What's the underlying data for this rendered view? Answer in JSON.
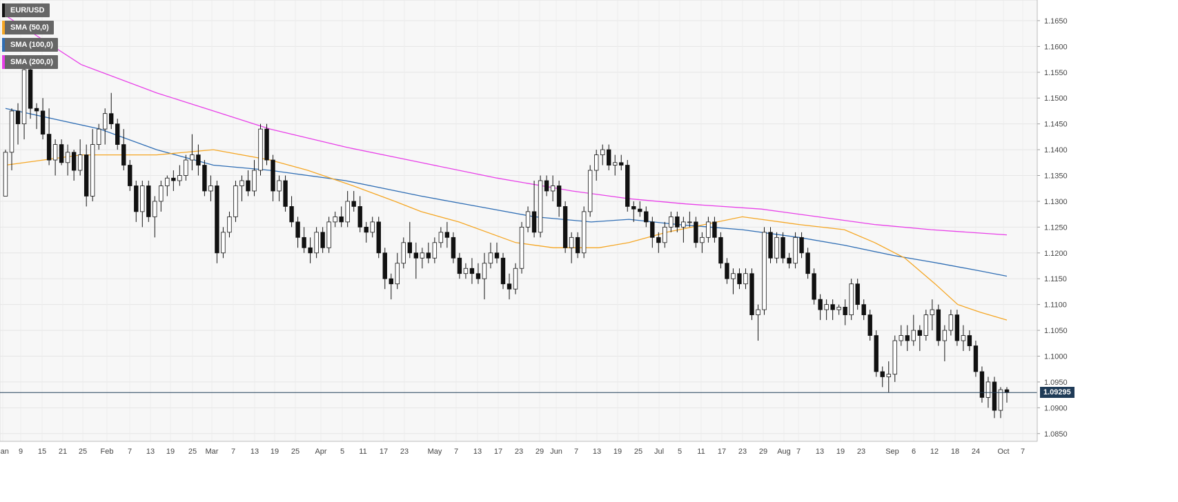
{
  "chart_data": {
    "type": "candlestick",
    "symbol": "EUR/USD",
    "y_ticks": [
      "1.1650",
      "1.1600",
      "1.1550",
      "1.1500",
      "1.1450",
      "1.1400",
      "1.1350",
      "1.1300",
      "1.1250",
      "1.1200",
      "1.1150",
      "1.1100",
      "1.1050",
      "1.1000",
      "1.0950",
      "1.0900",
      "1.0850"
    ],
    "x_ticks": [
      "Jan",
      "9",
      "15",
      "21",
      "25",
      "Feb",
      "7",
      "13",
      "19",
      "25",
      "Mar",
      "7",
      "13",
      "19",
      "25",
      "Apr",
      "5",
      "11",
      "17",
      "23",
      "May",
      "7",
      "13",
      "17",
      "23",
      "29",
      "Jun",
      "7",
      "13",
      "19",
      "25",
      "Jul",
      "5",
      "11",
      "17",
      "23",
      "29",
      "Aug",
      "7",
      "13",
      "19",
      "23",
      "Sep",
      "6",
      "12",
      "18",
      "24",
      "Oct",
      "7"
    ],
    "ylim": [
      1.0835,
      1.169
    ],
    "current_price": 1.09295,
    "current_price_label": "1.09295",
    "legend": [
      {
        "label": "EUR/USD",
        "color": "#111111"
      },
      {
        "label": "SMA (50,0)",
        "color": "#f5a623"
      },
      {
        "label": "SMA (100,0)",
        "color": "#2e6db4"
      },
      {
        "label": "SMA (200,0)",
        "color": "#e83ee8"
      }
    ],
    "sma_50": [
      [
        0,
        1.137
      ],
      [
        20,
        1.139
      ],
      [
        40,
        1.139
      ],
      [
        55,
        1.14
      ],
      [
        70,
        1.138
      ],
      [
        80,
        1.136
      ],
      [
        92,
        1.133
      ],
      [
        103,
        1.13
      ],
      [
        110,
        1.128
      ],
      [
        120,
        1.126
      ],
      [
        135,
        1.122
      ],
      [
        145,
        1.121
      ],
      [
        157,
        1.121
      ],
      [
        165,
        1.122
      ],
      [
        175,
        1.124
      ],
      [
        195,
        1.127
      ],
      [
        210,
        1.1255
      ],
      [
        222,
        1.1245
      ],
      [
        230,
        1.122
      ],
      [
        238,
        1.119
      ],
      [
        246,
        1.114
      ],
      [
        252,
        1.11
      ],
      [
        258,
        1.1085
      ],
      [
        265,
        1.107
      ]
    ],
    "sma_100": [
      [
        0,
        1.148
      ],
      [
        25,
        1.144
      ],
      [
        40,
        1.14
      ],
      [
        55,
        1.137
      ],
      [
        70,
        1.136
      ],
      [
        90,
        1.134
      ],
      [
        110,
        1.131
      ],
      [
        125,
        1.129
      ],
      [
        140,
        1.127
      ],
      [
        155,
        1.126
      ],
      [
        165,
        1.1265
      ],
      [
        178,
        1.1255
      ],
      [
        195,
        1.1245
      ],
      [
        210,
        1.123
      ],
      [
        222,
        1.1215
      ],
      [
        235,
        1.1195
      ],
      [
        247,
        1.118
      ],
      [
        258,
        1.1165
      ],
      [
        265,
        1.1155
      ]
    ],
    "sma_200": [
      [
        0,
        1.166
      ],
      [
        20,
        1.1565
      ],
      [
        40,
        1.151
      ],
      [
        55,
        1.1475
      ],
      [
        70,
        1.144
      ],
      [
        90,
        1.1405
      ],
      [
        110,
        1.1375
      ],
      [
        130,
        1.1345
      ],
      [
        150,
        1.132
      ],
      [
        165,
        1.1305
      ],
      [
        180,
        1.1295
      ],
      [
        200,
        1.1285
      ],
      [
        215,
        1.127
      ],
      [
        230,
        1.1255
      ],
      [
        245,
        1.1245
      ],
      [
        265,
        1.1235
      ]
    ],
    "candles": [
      [
        1.131,
        1.14,
        1.131,
        1.1395
      ],
      [
        1.1395,
        1.148,
        1.136,
        1.1475
      ],
      [
        1.1475,
        1.149,
        1.141,
        1.145
      ],
      [
        1.145,
        1.157,
        1.142,
        1.1555
      ],
      [
        1.1555,
        1.156,
        1.146,
        1.148
      ],
      [
        1.148,
        1.149,
        1.144,
        1.1475
      ],
      [
        1.1475,
        1.15,
        1.142,
        1.143
      ],
      [
        1.143,
        1.148,
        1.137,
        1.138
      ],
      [
        1.138,
        1.142,
        1.135,
        1.141
      ],
      [
        1.141,
        1.142,
        1.137,
        1.1375
      ],
      [
        1.1375,
        1.141,
        1.135,
        1.1395
      ],
      [
        1.1395,
        1.14,
        1.134,
        1.136
      ],
      [
        1.136,
        1.142,
        1.135,
        1.139
      ],
      [
        1.139,
        1.141,
        1.129,
        1.131
      ],
      [
        1.131,
        1.144,
        1.13,
        1.141
      ],
      [
        1.141,
        1.145,
        1.14,
        1.144
      ],
      [
        1.144,
        1.148,
        1.141,
        1.147
      ],
      [
        1.147,
        1.151,
        1.144,
        1.145
      ],
      [
        1.145,
        1.146,
        1.14,
        1.141
      ],
      [
        1.141,
        1.144,
        1.136,
        1.137
      ],
      [
        1.137,
        1.138,
        1.132,
        1.133
      ],
      [
        1.133,
        1.134,
        1.126,
        1.128
      ],
      [
        1.128,
        1.134,
        1.125,
        1.133
      ],
      [
        1.133,
        1.134,
        1.126,
        1.127
      ],
      [
        1.127,
        1.131,
        1.123,
        1.13
      ],
      [
        1.13,
        1.134,
        1.128,
        1.133
      ],
      [
        1.133,
        1.135,
        1.131,
        1.1345
      ],
      [
        1.1345,
        1.136,
        1.132,
        1.134
      ],
      [
        1.134,
        1.137,
        1.133,
        1.135
      ],
      [
        1.135,
        1.139,
        1.134,
        1.138
      ],
      [
        1.138,
        1.143,
        1.136,
        1.139
      ],
      [
        1.139,
        1.141,
        1.135,
        1.137
      ],
      [
        1.137,
        1.138,
        1.131,
        1.132
      ],
      [
        1.132,
        1.135,
        1.13,
        1.133
      ],
      [
        1.133,
        1.134,
        1.118,
        1.12
      ],
      [
        1.12,
        1.125,
        1.119,
        1.124
      ],
      [
        1.124,
        1.128,
        1.123,
        1.127
      ],
      [
        1.127,
        1.134,
        1.126,
        1.133
      ],
      [
        1.133,
        1.135,
        1.13,
        1.134
      ],
      [
        1.134,
        1.136,
        1.131,
        1.132
      ],
      [
        1.132,
        1.138,
        1.131,
        1.136
      ],
      [
        1.136,
        1.145,
        1.135,
        1.144
      ],
      [
        1.144,
        1.145,
        1.137,
        1.138
      ],
      [
        1.138,
        1.139,
        1.13,
        1.132
      ],
      [
        1.132,
        1.135,
        1.13,
        1.134
      ],
      [
        1.134,
        1.135,
        1.128,
        1.129
      ],
      [
        1.129,
        1.131,
        1.125,
        1.126
      ],
      [
        1.126,
        1.127,
        1.121,
        1.123
      ],
      [
        1.123,
        1.125,
        1.12,
        1.121
      ],
      [
        1.121,
        1.123,
        1.118,
        1.12
      ],
      [
        1.12,
        1.125,
        1.119,
        1.124
      ],
      [
        1.124,
        1.125,
        1.12,
        1.121
      ],
      [
        1.121,
        1.127,
        1.12,
        1.126
      ],
      [
        1.126,
        1.128,
        1.125,
        1.127
      ],
      [
        1.127,
        1.129,
        1.125,
        1.126
      ],
      [
        1.126,
        1.132,
        1.125,
        1.13
      ],
      [
        1.13,
        1.132,
        1.128,
        1.129
      ],
      [
        1.129,
        1.131,
        1.124,
        1.125
      ],
      [
        1.125,
        1.126,
        1.122,
        1.124
      ],
      [
        1.124,
        1.127,
        1.123,
        1.126
      ],
      [
        1.126,
        1.127,
        1.119,
        1.12
      ],
      [
        1.12,
        1.121,
        1.113,
        1.115
      ],
      [
        1.115,
        1.116,
        1.111,
        1.114
      ],
      [
        1.114,
        1.12,
        1.113,
        1.118
      ],
      [
        1.118,
        1.123,
        1.117,
        1.122
      ],
      [
        1.122,
        1.126,
        1.119,
        1.12
      ],
      [
        1.12,
        1.122,
        1.115,
        1.119
      ],
      [
        1.119,
        1.121,
        1.117,
        1.12
      ],
      [
        1.12,
        1.122,
        1.118,
        1.119
      ],
      [
        1.119,
        1.123,
        1.118,
        1.122
      ],
      [
        1.122,
        1.125,
        1.121,
        1.124
      ],
      [
        1.124,
        1.126,
        1.121,
        1.123
      ],
      [
        1.123,
        1.124,
        1.118,
        1.119
      ],
      [
        1.119,
        1.12,
        1.115,
        1.116
      ],
      [
        1.116,
        1.118,
        1.115,
        1.117
      ],
      [
        1.117,
        1.119,
        1.114,
        1.116
      ],
      [
        1.116,
        1.118,
        1.114,
        1.115
      ],
      [
        1.115,
        1.12,
        1.111,
        1.118
      ],
      [
        1.118,
        1.122,
        1.117,
        1.12
      ],
      [
        1.12,
        1.122,
        1.118,
        1.119
      ],
      [
        1.119,
        1.12,
        1.113,
        1.114
      ],
      [
        1.114,
        1.116,
        1.111,
        1.113
      ],
      [
        1.113,
        1.118,
        1.112,
        1.117
      ],
      [
        1.117,
        1.126,
        1.116,
        1.125
      ],
      [
        1.125,
        1.129,
        1.124,
        1.128
      ],
      [
        1.128,
        1.134,
        1.123,
        1.124
      ],
      [
        1.124,
        1.135,
        1.123,
        1.134
      ],
      [
        1.134,
        1.135,
        1.131,
        1.132
      ],
      [
        1.132,
        1.135,
        1.13,
        1.133
      ],
      [
        1.133,
        1.134,
        1.127,
        1.129
      ],
      [
        1.129,
        1.13,
        1.12,
        1.121
      ],
      [
        1.121,
        1.124,
        1.118,
        1.123
      ],
      [
        1.123,
        1.124,
        1.119,
        1.12
      ],
      [
        1.12,
        1.129,
        1.119,
        1.128
      ],
      [
        1.128,
        1.137,
        1.127,
        1.136
      ],
      [
        1.136,
        1.14,
        1.134,
        1.139
      ],
      [
        1.139,
        1.141,
        1.137,
        1.14
      ],
      [
        1.14,
        1.141,
        1.136,
        1.137
      ],
      [
        1.137,
        1.139,
        1.135,
        1.1375
      ],
      [
        1.1375,
        1.139,
        1.136,
        1.137
      ],
      [
        1.137,
        1.138,
        1.128,
        1.129
      ],
      [
        1.129,
        1.13,
        1.126,
        1.1285
      ],
      [
        1.1285,
        1.13,
        1.127,
        1.128
      ],
      [
        1.128,
        1.129,
        1.125,
        1.126
      ],
      [
        1.126,
        1.127,
        1.121,
        1.123
      ],
      [
        1.123,
        1.124,
        1.12,
        1.122
      ],
      [
        1.122,
        1.126,
        1.121,
        1.125
      ],
      [
        1.125,
        1.128,
        1.124,
        1.127
      ],
      [
        1.127,
        1.128,
        1.124,
        1.125
      ],
      [
        1.125,
        1.127,
        1.122,
        1.126
      ],
      [
        1.126,
        1.128,
        1.125,
        1.126
      ],
      [
        1.126,
        1.127,
        1.121,
        1.122
      ],
      [
        1.122,
        1.124,
        1.12,
        1.123
      ],
      [
        1.123,
        1.127,
        1.122,
        1.126
      ],
      [
        1.126,
        1.127,
        1.122,
        1.123
      ],
      [
        1.123,
        1.124,
        1.117,
        1.118
      ],
      [
        1.118,
        1.119,
        1.114,
        1.115
      ],
      [
        1.115,
        1.117,
        1.112,
        1.116
      ],
      [
        1.116,
        1.117,
        1.113,
        1.114
      ],
      [
        1.114,
        1.117,
        1.113,
        1.116
      ],
      [
        1.116,
        1.117,
        1.107,
        1.108
      ],
      [
        1.108,
        1.11,
        1.103,
        1.109
      ],
      [
        1.109,
        1.125,
        1.108,
        1.124
      ],
      [
        1.124,
        1.125,
        1.118,
        1.119
      ],
      [
        1.119,
        1.124,
        1.118,
        1.123
      ],
      [
        1.123,
        1.124,
        1.118,
        1.119
      ],
      [
        1.119,
        1.12,
        1.117,
        1.118
      ],
      [
        1.118,
        1.124,
        1.117,
        1.123
      ],
      [
        1.123,
        1.124,
        1.119,
        1.12
      ],
      [
        1.12,
        1.121,
        1.115,
        1.116
      ],
      [
        1.116,
        1.117,
        1.11,
        1.111
      ],
      [
        1.111,
        1.112,
        1.107,
        1.109
      ],
      [
        1.109,
        1.111,
        1.107,
        1.11
      ],
      [
        1.11,
        1.111,
        1.107,
        1.109
      ],
      [
        1.109,
        1.11,
        1.108,
        1.1095
      ],
      [
        1.1095,
        1.111,
        1.106,
        1.108
      ],
      [
        1.108,
        1.115,
        1.107,
        1.114
      ],
      [
        1.114,
        1.115,
        1.109,
        1.11
      ],
      [
        1.11,
        1.111,
        1.107,
        1.108
      ],
      [
        1.108,
        1.109,
        1.103,
        1.104
      ],
      [
        1.104,
        1.105,
        1.096,
        1.097
      ],
      [
        1.097,
        1.098,
        1.094,
        1.096
      ],
      [
        1.096,
        1.099,
        1.093,
        1.0965
      ],
      [
        1.0965,
        1.104,
        1.095,
        1.103
      ],
      [
        1.103,
        1.106,
        1.102,
        1.104
      ],
      [
        1.104,
        1.106,
        1.101,
        1.103
      ],
      [
        1.103,
        1.108,
        1.102,
        1.105
      ],
      [
        1.105,
        1.106,
        1.101,
        1.104
      ],
      [
        1.104,
        1.109,
        1.103,
        1.108
      ],
      [
        1.108,
        1.111,
        1.105,
        1.109
      ],
      [
        1.109,
        1.11,
        1.102,
        1.103
      ],
      [
        1.103,
        1.106,
        1.099,
        1.105
      ],
      [
        1.105,
        1.109,
        1.104,
        1.108
      ],
      [
        1.108,
        1.109,
        1.102,
        1.103
      ],
      [
        1.103,
        1.106,
        1.101,
        1.104
      ],
      [
        1.104,
        1.105,
        1.101,
        1.102
      ],
      [
        1.102,
        1.103,
        1.096,
        1.097
      ],
      [
        1.097,
        1.098,
        1.091,
        1.092
      ],
      [
        1.092,
        1.096,
        1.09,
        1.095
      ],
      [
        1.095,
        1.096,
        1.088,
        1.0895
      ],
      [
        1.0895,
        1.094,
        1.088,
        1.0935
      ],
      [
        1.0935,
        1.094,
        1.091,
        1.09295
      ]
    ]
  }
}
